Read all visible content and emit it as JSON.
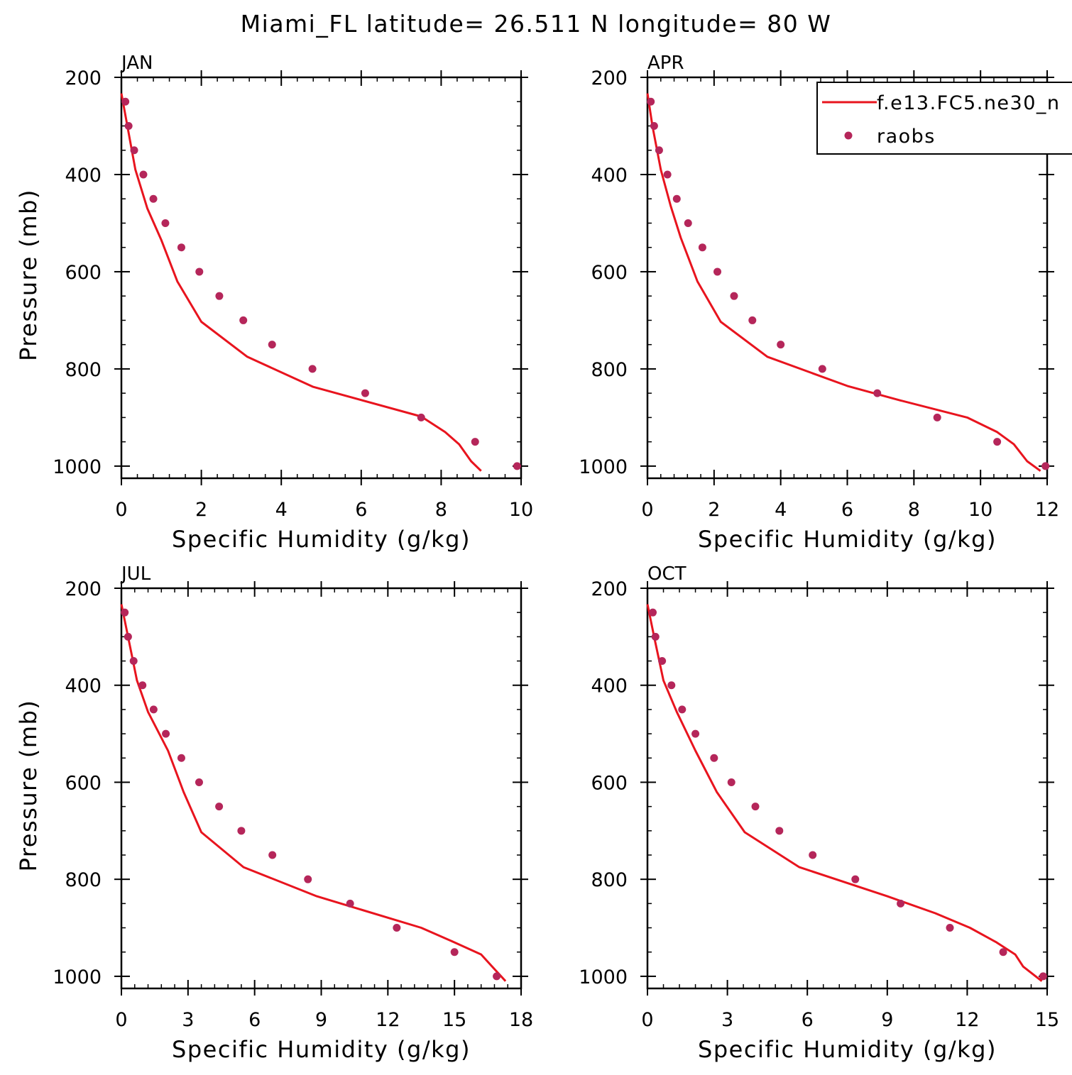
{
  "figure": {
    "title": "Miami_FL  latitude= 26.511 N longitude= 80 W"
  },
  "legend": {
    "model_label": "f.e13.FC5.ne30_n",
    "obs_label": "raobs"
  },
  "colors": {
    "model_line": "#e8141e",
    "obs_marker": "#b5265a",
    "axis": "#000000",
    "background": "#ffffff"
  },
  "chart_data": [
    {
      "type": "line",
      "panel_label": "JAN",
      "xlabel": "Specific Humidity (g/kg)",
      "ylabel": "Pressure (mb)",
      "xlim": [
        0,
        10
      ],
      "ylim": [
        200,
        1025
      ],
      "y_inverted": true,
      "xticks": [
        0,
        2,
        4,
        6,
        8,
        10
      ],
      "yticks": [
        200,
        400,
        600,
        800,
        1000
      ],
      "legend_placement": "none",
      "series": [
        {
          "name": "f.e13.FC5.ne30_n",
          "style": "line",
          "x": [
            0.0,
            0.15,
            0.35,
            0.65,
            1.0,
            1.4,
            2.0,
            3.15,
            4.8,
            7.5,
            8.1,
            8.45,
            8.75,
            9.0
          ],
          "y": [
            233,
            300,
            390,
            470,
            535,
            620,
            703,
            775,
            837,
            898,
            930,
            955,
            990,
            1010
          ]
        },
        {
          "name": "raobs",
          "style": "markers",
          "x": [
            0.1,
            0.18,
            0.32,
            0.55,
            0.8,
            1.1,
            1.5,
            1.95,
            2.45,
            3.05,
            3.77,
            4.78,
            6.1,
            7.5,
            8.85,
            9.9
          ],
          "y": [
            250,
            300,
            350,
            400,
            450,
            500,
            550,
            600,
            650,
            700,
            750,
            800,
            850,
            900,
            950,
            1000
          ]
        }
      ]
    },
    {
      "type": "line",
      "panel_label": "APR",
      "xlabel": "Specific Humidity (g/kg)",
      "ylabel": "",
      "xlim": [
        0,
        12
      ],
      "ylim": [
        200,
        1025
      ],
      "y_inverted": true,
      "xticks": [
        0,
        2,
        4,
        6,
        8,
        10,
        12
      ],
      "yticks": [
        200,
        400,
        600,
        800,
        1000
      ],
      "legend_placement": "top-right",
      "series": [
        {
          "name": "f.e13.FC5.ne30_n",
          "style": "line",
          "x": [
            0.0,
            0.15,
            0.4,
            0.7,
            1.0,
            1.5,
            2.2,
            3.6,
            6.0,
            7.6,
            9.6,
            10.5,
            11.0,
            11.4,
            11.8
          ],
          "y": [
            233,
            300,
            390,
            465,
            530,
            620,
            703,
            775,
            835,
            865,
            900,
            930,
            955,
            990,
            1010
          ]
        },
        {
          "name": "raobs",
          "style": "markers",
          "x": [
            0.1,
            0.2,
            0.35,
            0.6,
            0.88,
            1.22,
            1.65,
            2.1,
            2.6,
            3.15,
            4.0,
            5.25,
            6.9,
            8.7,
            10.5,
            11.95
          ],
          "y": [
            250,
            300,
            350,
            400,
            450,
            500,
            550,
            600,
            650,
            700,
            750,
            800,
            850,
            900,
            950,
            1000
          ]
        }
      ]
    },
    {
      "type": "line",
      "panel_label": "JUL",
      "xlabel": "Specific Humidity (g/kg)",
      "ylabel": "Pressure (mb)",
      "xlim": [
        0,
        18
      ],
      "ylim": [
        200,
        1025
      ],
      "y_inverted": true,
      "xticks": [
        0,
        3,
        6,
        9,
        12,
        15,
        18
      ],
      "yticks": [
        200,
        400,
        600,
        800,
        1000
      ],
      "legend_placement": "none",
      "series": [
        {
          "name": "f.e13.FC5.ne30_n",
          "style": "line",
          "x": [
            0.0,
            0.3,
            0.7,
            1.2,
            2.1,
            2.8,
            3.6,
            5.5,
            8.8,
            13.5,
            15.0,
            16.2,
            16.7,
            17.3
          ],
          "y": [
            233,
            300,
            390,
            455,
            535,
            620,
            703,
            775,
            835,
            900,
            930,
            955,
            980,
            1010
          ]
        },
        {
          "name": "raobs",
          "style": "markers",
          "x": [
            0.15,
            0.3,
            0.55,
            0.95,
            1.45,
            2.0,
            2.7,
            3.5,
            4.4,
            5.4,
            6.8,
            8.4,
            10.3,
            12.4,
            15.0,
            16.9
          ],
          "y": [
            250,
            300,
            350,
            400,
            450,
            500,
            550,
            600,
            650,
            700,
            750,
            800,
            850,
            900,
            950,
            1000
          ]
        }
      ]
    },
    {
      "type": "line",
      "panel_label": "OCT",
      "xlabel": "Specific Humidity (g/kg)",
      "ylabel": "",
      "xlim": [
        0,
        15
      ],
      "ylim": [
        200,
        1025
      ],
      "y_inverted": true,
      "xticks": [
        0,
        3,
        6,
        9,
        12,
        15
      ],
      "yticks": [
        200,
        400,
        600,
        800,
        1000
      ],
      "legend_placement": "none",
      "series": [
        {
          "name": "f.e13.FC5.ne30_n",
          "style": "line",
          "x": [
            0.0,
            0.25,
            0.6,
            1.1,
            1.8,
            2.6,
            3.65,
            5.7,
            9.0,
            10.8,
            12.1,
            13.1,
            13.8,
            14.1,
            14.8
          ],
          "y": [
            233,
            300,
            390,
            455,
            535,
            620,
            703,
            775,
            835,
            870,
            900,
            930,
            955,
            980,
            1010
          ]
        },
        {
          "name": "raobs",
          "style": "markers",
          "x": [
            0.2,
            0.3,
            0.55,
            0.9,
            1.3,
            1.8,
            2.5,
            3.15,
            4.05,
            4.95,
            6.2,
            7.8,
            9.5,
            11.35,
            13.35,
            14.85
          ],
          "y": [
            250,
            300,
            350,
            400,
            450,
            500,
            550,
            600,
            650,
            700,
            750,
            800,
            850,
            900,
            950,
            1000
          ]
        }
      ]
    }
  ]
}
